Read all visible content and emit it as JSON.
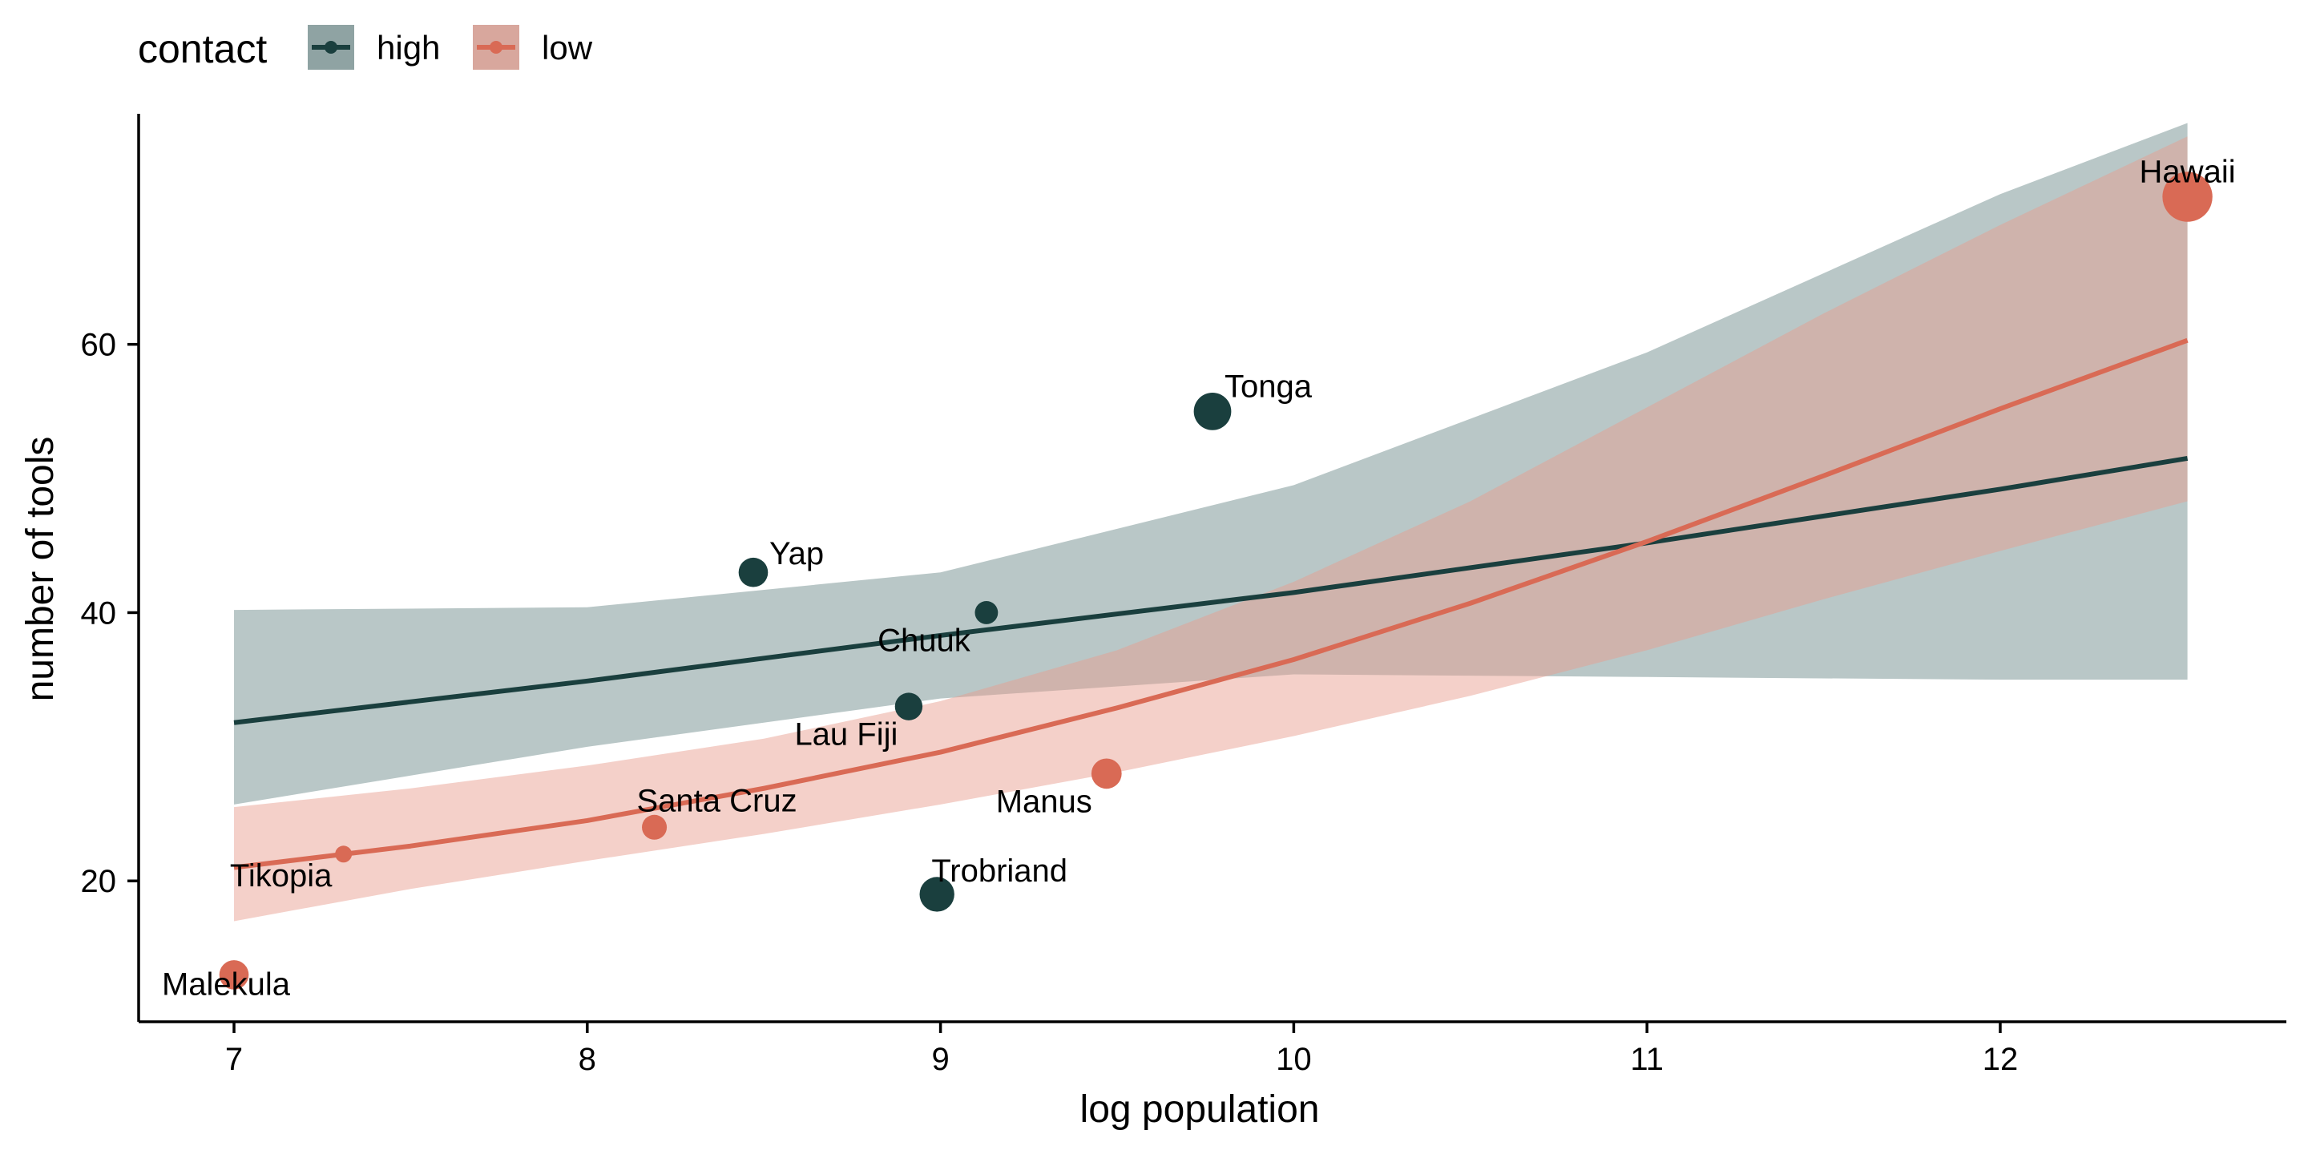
{
  "chart_data": {
    "type": "scatter",
    "xlabel": "log population",
    "ylabel": "number of tools",
    "xlim": [
      6.73,
      12.81
    ],
    "ylim": [
      9.5,
      78.5
    ],
    "x_ticks": [
      7,
      8,
      9,
      10,
      11,
      12
    ],
    "y_ticks": [
      20,
      40,
      60
    ],
    "grid": false,
    "legend": {
      "title": "contact",
      "position": "top-left",
      "entries": [
        {
          "label": "high",
          "color": "#1a3f3e",
          "fill": "#8fa3a3"
        },
        {
          "label": "low",
          "color": "#d96a55",
          "fill": "#d8a79d"
        }
      ]
    },
    "colors": {
      "high": "#1a3f3e",
      "low": "#d96a55",
      "high_ribbon": "#b9c7c7",
      "low_ribbon": "#e89d8f"
    },
    "points": [
      {
        "name": "Malekula",
        "x": 7.0,
        "y": 13,
        "contact": "low",
        "size": 2.2
      },
      {
        "name": "Tikopia",
        "x": 7.31,
        "y": 22,
        "contact": "low",
        "size": 0.8
      },
      {
        "name": "Santa Cruz",
        "x": 8.19,
        "y": 24,
        "contact": "low",
        "size": 1.7
      },
      {
        "name": "Yap",
        "x": 8.47,
        "y": 43,
        "contact": "high",
        "size": 2.2
      },
      {
        "name": "Lau Fiji",
        "x": 8.91,
        "y": 33,
        "contact": "high",
        "size": 2.0
      },
      {
        "name": "Trobriand",
        "x": 8.99,
        "y": 19,
        "contact": "high",
        "size": 2.8
      },
      {
        "name": "Chuuk",
        "x": 9.13,
        "y": 40,
        "contact": "high",
        "size": 1.5
      },
      {
        "name": "Manus",
        "x": 9.47,
        "y": 28,
        "contact": "low",
        "size": 2.3
      },
      {
        "name": "Tonga",
        "x": 9.77,
        "y": 55,
        "contact": "high",
        "size": 3.1
      },
      {
        "name": "Hawaii",
        "x": 12.53,
        "y": 71,
        "contact": "low",
        "size": 4.5
      }
    ],
    "series": [
      {
        "name": "high",
        "x": [
          7.0,
          8.0,
          9.0,
          10.0,
          11.0,
          12.0,
          12.53
        ],
        "y": [
          31.8,
          34.9,
          38.3,
          41.5,
          45.2,
          49.2,
          51.5
        ],
        "lower": [
          25.7,
          30.0,
          33.6,
          35.4,
          35.2,
          35.0,
          35.0
        ],
        "upper": [
          40.2,
          40.4,
          43.0,
          49.5,
          59.4,
          71.2,
          76.5
        ]
      },
      {
        "name": "low",
        "x": [
          7.0,
          7.5,
          8.0,
          8.5,
          9.0,
          9.5,
          10.0,
          10.5,
          11.0,
          11.5,
          12.0,
          12.53
        ],
        "y": [
          21.0,
          22.6,
          24.5,
          26.9,
          29.6,
          32.9,
          36.5,
          40.7,
          45.3,
          50.2,
          55.2,
          60.3
        ],
        "lower": [
          17.0,
          19.4,
          21.5,
          23.5,
          25.7,
          28.1,
          30.8,
          33.8,
          37.2,
          41.0,
          44.6,
          48.3
        ],
        "upper": [
          25.5,
          26.9,
          28.6,
          30.6,
          33.4,
          37.2,
          42.3,
          48.3,
          55.3,
          62.3,
          68.9,
          75.5
        ]
      }
    ]
  }
}
